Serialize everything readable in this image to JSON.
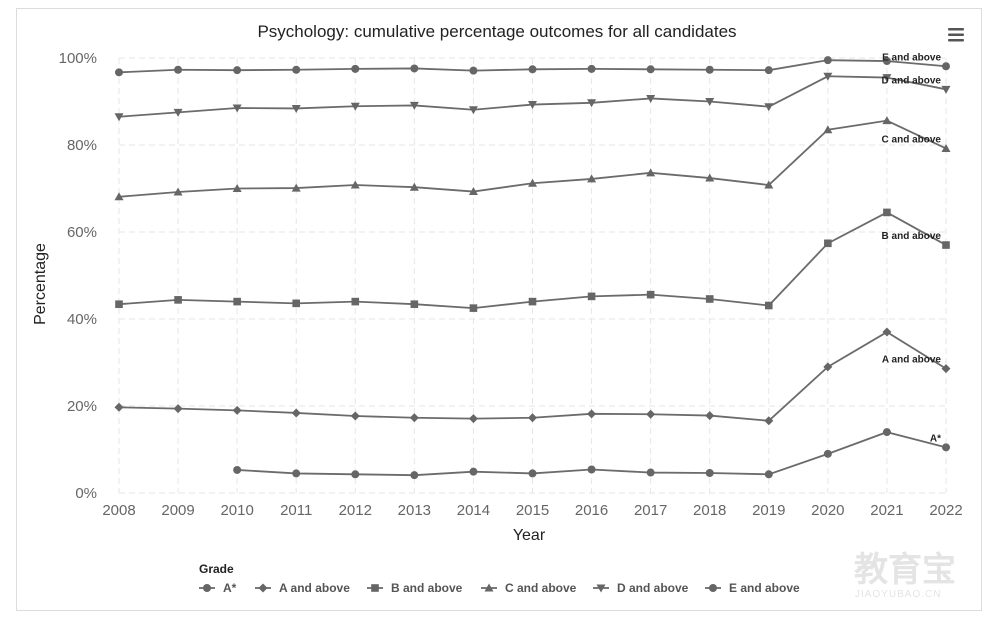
{
  "chart_data": {
    "type": "line",
    "title": "Psychology: cumulative percentage outcomes for all candidates",
    "xlabel": "Year",
    "ylabel": "Percentage",
    "x": [
      2008,
      2009,
      2010,
      2011,
      2012,
      2013,
      2014,
      2015,
      2016,
      2017,
      2018,
      2019,
      2020,
      2021,
      2022
    ],
    "ylim": [
      0,
      100
    ],
    "y_ticks": [
      0,
      20,
      40,
      60,
      80,
      100
    ],
    "y_tick_labels": [
      "0%",
      "20%",
      "40%",
      "60%",
      "80%",
      "100%"
    ],
    "grid": true,
    "legend": {
      "title": "Grade",
      "placement": "bottom-left"
    },
    "series": [
      {
        "name": "A*",
        "marker": "circle",
        "values": [
          null,
          null,
          5.3,
          4.5,
          4.3,
          4.1,
          4.9,
          4.5,
          5.4,
          4.7,
          4.6,
          4.3,
          9.0,
          14.0,
          10.5
        ]
      },
      {
        "name": "A and above",
        "marker": "diamond",
        "values": [
          19.7,
          19.4,
          19.0,
          18.4,
          17.7,
          17.3,
          17.1,
          17.3,
          18.2,
          18.1,
          17.8,
          16.6,
          29.0,
          37.0,
          28.6
        ]
      },
      {
        "name": "B and above",
        "marker": "square",
        "values": [
          43.4,
          44.4,
          44.0,
          43.6,
          44.0,
          43.4,
          42.5,
          44.0,
          45.2,
          45.6,
          44.6,
          43.1,
          57.4,
          64.5,
          57.0
        ]
      },
      {
        "name": "C and above",
        "marker": "triangle",
        "values": [
          68.1,
          69.2,
          70.0,
          70.1,
          70.8,
          70.3,
          69.3,
          71.2,
          72.2,
          73.6,
          72.4,
          70.8,
          83.5,
          85.6,
          79.2
        ]
      },
      {
        "name": "D and above",
        "marker": "triangle-down",
        "values": [
          86.5,
          87.5,
          88.5,
          88.4,
          88.9,
          89.1,
          88.1,
          89.3,
          89.7,
          90.7,
          90.0,
          88.8,
          95.8,
          95.5,
          92.8
        ]
      },
      {
        "name": "E and above",
        "marker": "circle",
        "values": [
          96.7,
          97.3,
          97.2,
          97.3,
          97.5,
          97.6,
          97.1,
          97.4,
          97.5,
          97.4,
          97.3,
          97.2,
          99.5,
          99.3,
          98.1
        ]
      }
    ],
    "end_labels": [
      "A*",
      "A and above",
      "B and above",
      "C and above",
      "D and above",
      "E and above"
    ]
  },
  "watermark": {
    "main": "教育宝",
    "sub": "JIAOYUBAO.CN"
  }
}
